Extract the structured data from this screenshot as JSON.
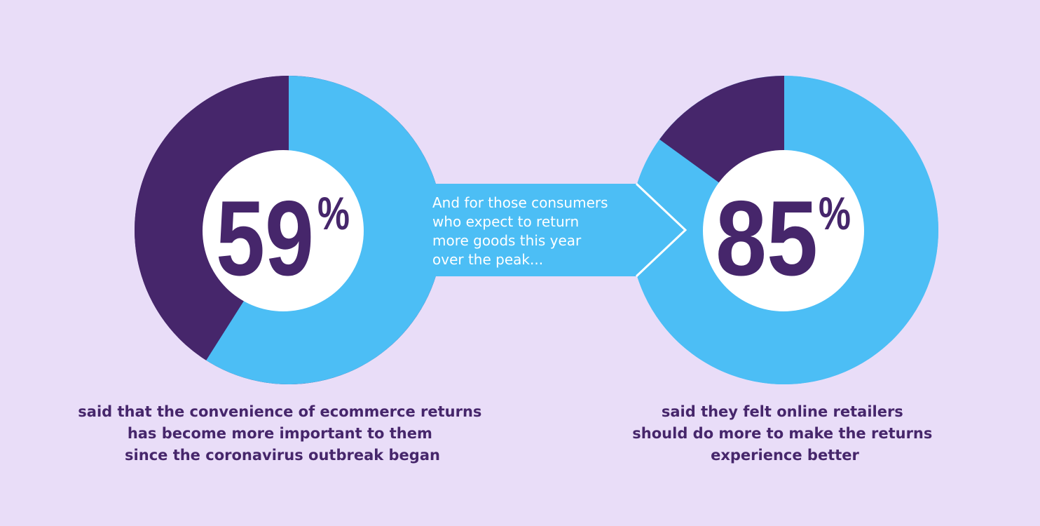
{
  "colors": {
    "background": "#E9DDF8",
    "accent_blue": "#4CBEF5",
    "dark_purple": "#46266B",
    "white": "#FFFFFF"
  },
  "chart_data": [
    {
      "type": "pie",
      "value": 59,
      "display_number": "59",
      "display_unit": "%",
      "slices": [
        {
          "value": 59,
          "color": "#4CBEF5"
        },
        {
          "value": 41,
          "color": "#46266B"
        }
      ],
      "caption_lines": [
        "said that the convenience of ecommerce returns",
        "has become more important to them",
        "since the coronavirus outbreak began"
      ]
    },
    {
      "type": "pie",
      "value": 85,
      "display_number": "85",
      "display_unit": "%",
      "slices": [
        {
          "value": 85,
          "color": "#4CBEF5"
        },
        {
          "value": 15,
          "color": "#46266B"
        }
      ],
      "caption_lines": [
        "said they felt online retailers",
        "should do more to make the returns",
        "experience better"
      ]
    }
  ],
  "connector": {
    "lines": [
      "And for those consumers",
      "who expect to return",
      "more goods this year",
      "over the peak..."
    ]
  }
}
